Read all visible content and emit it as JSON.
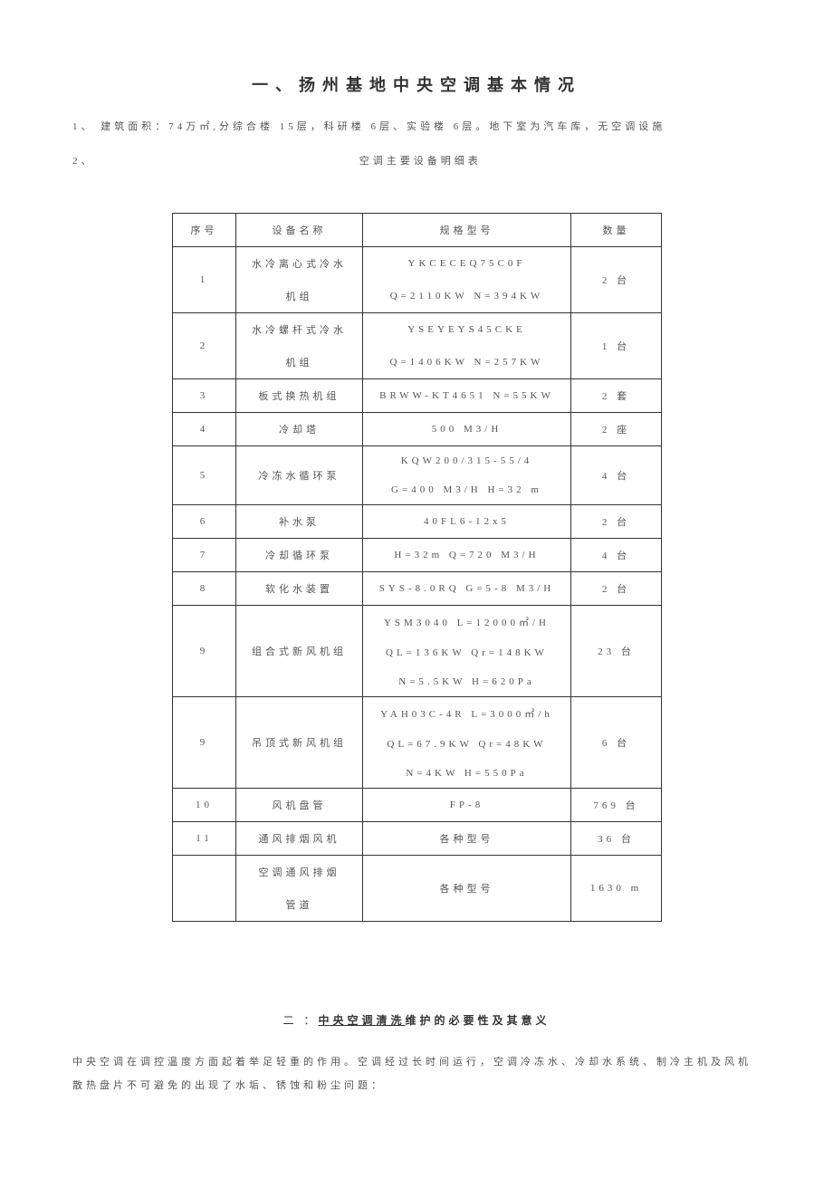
{
  "title": "一、扬州基地中央空调基本情况",
  "intro1_num": "1、",
  "intro1_text": "建筑面积：74万㎡,分综合楼 15层，科研楼 6层、实验楼 6层。地下室为汽车库，无空调设施",
  "intro2_num": "2、",
  "intro2_text": "空调主要设备明细表",
  "table": {
    "headers": [
      "序号",
      "设备名称",
      "规格型号",
      "数量"
    ],
    "rows": [
      {
        "seq": "1",
        "name": "水冷离心式冷水",
        "spec": "YKCECEQ75C0F",
        "qty": "2 台",
        "name2": "机组",
        "spec2": "Q=2110KW    N=394KW"
      },
      {
        "seq": "2",
        "name": "水冷螺杆式冷水",
        "spec": "YSEYEYS45CKE",
        "qty": "1 台",
        "name2": "机组",
        "spec2": "Q=1406KW  N=257KW"
      },
      {
        "seq": "3",
        "name": "板式换热机组",
        "spec": "BRWW-KT4651  N=55KW",
        "qty": "2 套"
      },
      {
        "seq": "4",
        "name": "冷却塔",
        "spec": "500 M3/H",
        "qty": "2 座"
      },
      {
        "seq": "5",
        "name": "冷冻水循环泵",
        "spec": "KQW200/315-55/4",
        "qty": "4 台",
        "spec2": "G=400 M3/H  H=32 m"
      },
      {
        "seq": "6",
        "name": "补水泵",
        "spec": "40FL6-12x5",
        "qty": "2 台"
      },
      {
        "seq": "7",
        "name": "冷却循环泵",
        "spec": "H=32m  Q=720 M3/H",
        "qty": "4 台"
      },
      {
        "seq": "8",
        "name": "软化水装置",
        "spec": "SYS-8.0RQ  G=5-8 M3/H",
        "qty": "2 台"
      },
      {
        "seq": "9",
        "name": "组合式新风机组",
        "spec": "YSM3040 L=12000㎡/H",
        "qty": "23 台",
        "spec2": "QL=136KW Qr=148KW",
        "spec3": "N=5.5KW H=620Pa"
      },
      {
        "seq": "9",
        "name": "吊顶式新风机组",
        "spec": "YAH03C-4R  L=3000㎡/h",
        "qty": "6 台",
        "spec2": "QL=67.9KW Qr=48KW",
        "spec3": "N=4KW  H=550Pa"
      },
      {
        "seq": "10",
        "name": "风机盘管",
        "spec": "FP-8",
        "qty": "769 台"
      },
      {
        "seq": "11",
        "name": "通风排烟风机",
        "spec": "各种型号",
        "qty": "36 台"
      },
      {
        "seq": "",
        "name": "空调通风排烟",
        "spec": "各种型号",
        "qty": "1630 m",
        "name2": "管道"
      }
    ]
  },
  "section2": {
    "num": "二",
    "colon": "：",
    "underline": "中央空调清洗",
    "rest": "维护的必要性及其意义"
  },
  "para": "中央空调在调控温度方面起着举足轻重的作用。空调经过长时间运行，空调冷冻水、冷却水系统、制冷主机及风机散热盘片不可避免的出现了水垢、锈蚀和粉尘问题："
}
